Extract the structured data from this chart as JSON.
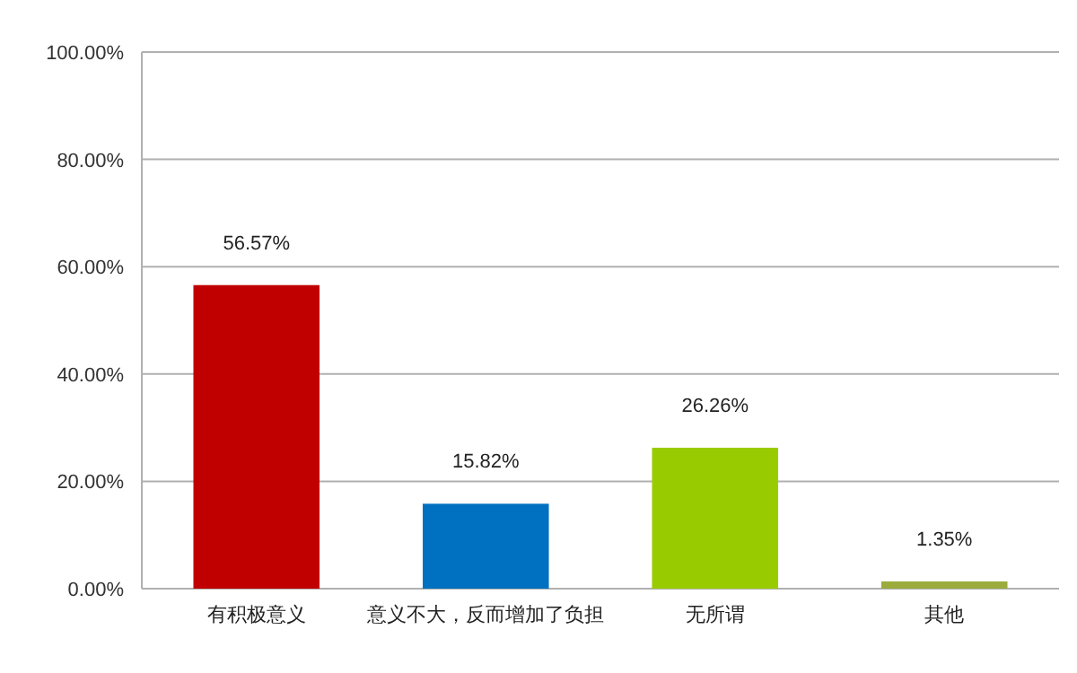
{
  "chart_data": {
    "type": "bar",
    "categories": [
      "有积极意义",
      "意义不大，反而增加了负担",
      "无所谓",
      "其他"
    ],
    "values": [
      56.57,
      15.82,
      26.26,
      1.35
    ],
    "colors": [
      "#c00000",
      "#0070c0",
      "#99cc00",
      "#9bab3c"
    ],
    "value_labels": [
      "56.57%",
      "15.82%",
      "26.26%",
      "1.35%"
    ],
    "ylim": [
      0,
      100
    ],
    "yticks": [
      {
        "value": 0,
        "label": "0.00%"
      },
      {
        "value": 20,
        "label": "20.00%"
      },
      {
        "value": 40,
        "label": "40.00%"
      },
      {
        "value": 60,
        "label": "60.00%"
      },
      {
        "value": 80,
        "label": "80.00%"
      },
      {
        "value": 100,
        "label": "100.00%"
      }
    ],
    "grid": "y"
  }
}
